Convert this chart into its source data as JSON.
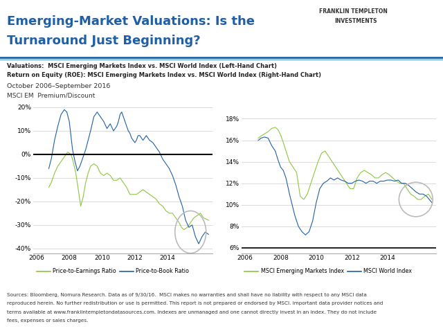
{
  "title_line1": "Emerging-Market Valuations: Is the",
  "title_line2": "Turnaround Just Beginning?",
  "title_color": "#1F5FA6",
  "subtitle1": "Valuations:  MSCI Emerging Markets Index vs. MSCI World Index (Left-Hand Chart)",
  "subtitle2": "Return on Equity (ROE): MSCI Emerging Markets Index vs. MSCI World Index (Right-Hand Chart)",
  "date_range": "October 2006–September 2016",
  "left_label": "MSCI EM  Premium/Discount",
  "background_color": "#FFFFFF",
  "left_ylim": [
    -42,
    22
  ],
  "left_yticks": [
    -40,
    -30,
    -20,
    -10,
    0,
    10,
    20
  ],
  "left_ytick_labels": [
    "-40%",
    "-30%",
    "-20%",
    "-10%",
    "0%",
    "10%",
    "20%"
  ],
  "right_ylim": [
    5.5,
    19.5
  ],
  "right_yticks": [
    6,
    8,
    10,
    12,
    14,
    16,
    18
  ],
  "right_ytick_labels": [
    "6%",
    "8%",
    "10%",
    "12%",
    "14%",
    "16%",
    "18%"
  ],
  "color_pe": "#8DC63F",
  "color_pb": "#1F5FA6",
  "color_em": "#8DC63F",
  "color_world": "#1F5FA6",
  "footer_text": "Sources: Bloomberg, Nomura Research. Data as of 9/30/16.  MSCI makes no warranties and shall have no liability with respect to any MSCI data\nreproduced herein. No further redistribution or use is permitted. This report is not prepared or endorsed by MSCI. Important data provider notices and\nterms available at www.franklintempletondatasources.com. Indexes are unmanaged and one cannot directly invest in an index. They do not include\nfees, expenses or sales charges.",
  "left_pe_x": [
    2006.75,
    2006.9,
    2007.1,
    2007.3,
    2007.5,
    2007.7,
    2007.9,
    2008.1,
    2008.2,
    2008.4,
    2008.55,
    2008.7,
    2008.85,
    2009.0,
    2009.15,
    2009.3,
    2009.5,
    2009.7,
    2009.9,
    2010.1,
    2010.3,
    2010.5,
    2010.7,
    2010.9,
    2011.1,
    2011.3,
    2011.5,
    2011.7,
    2011.9,
    2012.1,
    2012.3,
    2012.5,
    2012.7,
    2012.9,
    2013.1,
    2013.3,
    2013.5,
    2013.7,
    2013.9,
    2014.1,
    2014.3,
    2014.5,
    2014.7,
    2014.85,
    2015.0,
    2015.2,
    2015.4,
    2015.6,
    2015.8,
    2016.0,
    2016.2,
    2016.5
  ],
  "left_pe_y": [
    -14,
    -12,
    -8,
    -5,
    -3,
    -1,
    1,
    0,
    -2,
    -8,
    -15,
    -22,
    -18,
    -12,
    -8,
    -5,
    -4,
    -5,
    -8,
    -9,
    -8,
    -9,
    -11,
    -11,
    -10,
    -12,
    -14,
    -17,
    -17,
    -17,
    -16,
    -15,
    -16,
    -17,
    -18,
    -19,
    -21,
    -22,
    -24,
    -25,
    -25,
    -27,
    -29,
    -31,
    -32,
    -31,
    -29,
    -27,
    -26,
    -25,
    -27,
    -28
  ],
  "left_pb_x": [
    2006.75,
    2006.9,
    2007.1,
    2007.3,
    2007.5,
    2007.7,
    2007.85,
    2008.0,
    2008.1,
    2008.2,
    2008.35,
    2008.5,
    2008.65,
    2008.8,
    2009.0,
    2009.15,
    2009.3,
    2009.5,
    2009.7,
    2009.9,
    2010.1,
    2010.3,
    2010.5,
    2010.7,
    2010.9,
    2011.0,
    2011.1,
    2011.2,
    2011.3,
    2011.4,
    2011.5,
    2011.6,
    2011.7,
    2011.8,
    2011.9,
    2012.0,
    2012.1,
    2012.2,
    2012.3,
    2012.5,
    2012.7,
    2012.9,
    2013.1,
    2013.3,
    2013.5,
    2013.7,
    2013.9,
    2014.1,
    2014.3,
    2014.5,
    2014.7,
    2014.9,
    2015.1,
    2015.3,
    2015.5,
    2015.7,
    2015.9,
    2016.1,
    2016.3,
    2016.5
  ],
  "left_pb_y": [
    -6,
    -2,
    6,
    12,
    17,
    19,
    18,
    14,
    8,
    2,
    -3,
    -7,
    -5,
    -2,
    2,
    6,
    10,
    16,
    18,
    16,
    14,
    11,
    13,
    10,
    12,
    14,
    17,
    18,
    16,
    14,
    12,
    10,
    9,
    7,
    6,
    5,
    6,
    8,
    8,
    6,
    8,
    6,
    5,
    3,
    1,
    -2,
    -4,
    -6,
    -9,
    -13,
    -18,
    -22,
    -28,
    -31,
    -30,
    -35,
    -38,
    -35,
    -33,
    -34
  ],
  "right_em_x": [
    2006.75,
    2006.9,
    2007.1,
    2007.3,
    2007.5,
    2007.7,
    2007.85,
    2008.0,
    2008.15,
    2008.3,
    2008.5,
    2008.7,
    2008.9,
    2009.1,
    2009.3,
    2009.5,
    2009.7,
    2009.9,
    2010.1,
    2010.3,
    2010.5,
    2010.7,
    2010.9,
    2011.1,
    2011.3,
    2011.5,
    2011.7,
    2011.9,
    2012.1,
    2012.3,
    2012.5,
    2012.7,
    2012.9,
    2013.1,
    2013.3,
    2013.5,
    2013.7,
    2013.9,
    2014.1,
    2014.3,
    2014.5,
    2014.7,
    2014.9,
    2015.1,
    2015.3,
    2015.5,
    2015.7,
    2015.9,
    2016.1,
    2016.3,
    2016.5
  ],
  "right_em_y": [
    16.2,
    16.4,
    16.6,
    16.8,
    17.1,
    17.2,
    17.0,
    16.5,
    15.8,
    15.0,
    14.0,
    13.5,
    13.0,
    10.8,
    10.5,
    11.0,
    12.0,
    13.0,
    14.0,
    14.8,
    15.0,
    14.5,
    14.0,
    13.5,
    13.0,
    12.5,
    12.0,
    11.5,
    11.5,
    12.5,
    13.0,
    13.2,
    13.0,
    12.8,
    12.5,
    12.5,
    12.8,
    13.0,
    12.8,
    12.5,
    12.2,
    12.0,
    12.0,
    11.5,
    11.0,
    10.8,
    10.5,
    10.5,
    10.8,
    11.0,
    10.5
  ],
  "right_world_x": [
    2006.75,
    2006.9,
    2007.1,
    2007.3,
    2007.5,
    2007.7,
    2007.85,
    2008.0,
    2008.15,
    2008.3,
    2008.5,
    2008.65,
    2008.8,
    2009.0,
    2009.2,
    2009.4,
    2009.6,
    2009.8,
    2010.0,
    2010.2,
    2010.4,
    2010.6,
    2010.8,
    2011.0,
    2011.2,
    2011.4,
    2011.6,
    2011.8,
    2012.0,
    2012.2,
    2012.4,
    2012.6,
    2012.8,
    2013.0,
    2013.2,
    2013.4,
    2013.6,
    2013.8,
    2014.0,
    2014.2,
    2014.4,
    2014.6,
    2014.8,
    2015.0,
    2015.2,
    2015.4,
    2015.6,
    2015.8,
    2016.0,
    2016.2,
    2016.5
  ],
  "right_world_y": [
    16.0,
    16.2,
    16.3,
    16.2,
    15.5,
    15.0,
    14.2,
    13.5,
    13.2,
    12.5,
    11.0,
    10.0,
    9.0,
    8.0,
    7.5,
    7.2,
    7.5,
    8.5,
    10.2,
    11.5,
    12.0,
    12.2,
    12.5,
    12.3,
    12.5,
    12.3,
    12.2,
    12.0,
    12.0,
    12.2,
    12.3,
    12.2,
    12.0,
    12.2,
    12.2,
    12.0,
    12.2,
    12.2,
    12.3,
    12.3,
    12.2,
    12.3,
    12.0,
    12.0,
    11.8,
    11.5,
    11.2,
    11.0,
    11.0,
    10.8,
    10.2
  ]
}
